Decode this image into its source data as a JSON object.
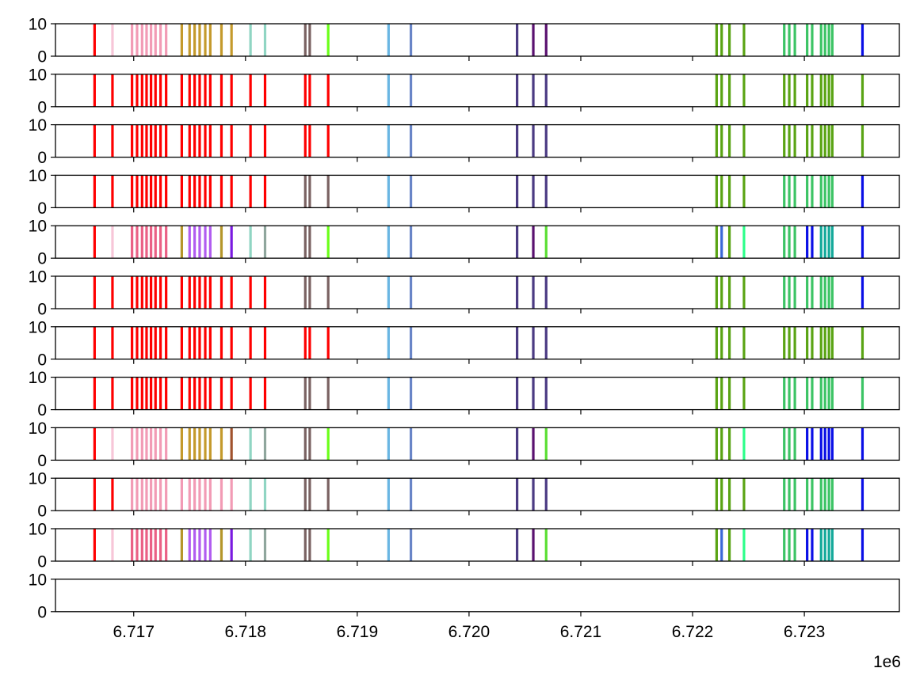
{
  "chart_data": {
    "type": "bar",
    "panel_count": 12,
    "sharex": true,
    "xlim": [
      6716300,
      6723850
    ],
    "ylim": [
      0,
      10
    ],
    "y_ticks": [
      0,
      10
    ],
    "y_tick_labels": [
      "0",
      "10"
    ],
    "x_ticks": [
      6717000,
      6718000,
      6719000,
      6720000,
      6721000,
      6722000,
      6723000
    ],
    "x_tick_labels": [
      "6.717",
      "6.718",
      "6.719",
      "6.720",
      "6.721",
      "6.722",
      "6.723"
    ],
    "x_offset_label": "1e6",
    "bar_height": 10,
    "positions": [
      6716650,
      6716810,
      6716985,
      6717030,
      6717075,
      6717115,
      6717155,
      6717195,
      6717240,
      6717290,
      6717430,
      6717500,
      6717545,
      6717590,
      6717640,
      6717685,
      6717785,
      6717875,
      6718045,
      6718175,
      6718535,
      6718575,
      6718740,
      6719280,
      6719480,
      6720430,
      6720575,
      6720690,
      6722215,
      6722260,
      6722330,
      6722460,
      6722820,
      6722865,
      6722915,
      6723025,
      6723070,
      6723150,
      6723185,
      6723220,
      6723250,
      6723520
    ],
    "palette": {
      "red": "#ff0000",
      "pink_light": "#f7c6d8",
      "pink": "#f29bb5",
      "pink_dark": "#ea6085",
      "gold": "#c49a2c",
      "gold_b": "#b5962b",
      "brown": "#a0522d",
      "teal_light": "#90d5c3",
      "grey_teal": "#8fa69d",
      "taupe": "#7a6262",
      "lime": "#6bff1a",
      "sky": "#69b6e3",
      "steel": "#6985c7",
      "navy_purple": "#4b3b83",
      "deep_purple": "#5a1170",
      "green_b": "#5ade33",
      "olive_green": "#5aa414",
      "royal_blue": "#3b68d8",
      "spring_green": "#2cff8a",
      "green": "#3cc465",
      "blue": "#0a0fe6",
      "cyan_teal": "#14a99a",
      "violet": "#b15cf0",
      "purple": "#7a1ae0"
    },
    "panels": [
      {
        "colors": [
          "red",
          "pink_light",
          "pink",
          "pink",
          "pink",
          "pink",
          "pink",
          "pink",
          "pink",
          "pink",
          "gold",
          "gold",
          "gold",
          "gold",
          "gold",
          "gold",
          "gold",
          "gold",
          "teal_light",
          "teal_light",
          "taupe",
          "taupe",
          "lime",
          "sky",
          "steel",
          "navy_purple",
          "deep_purple",
          "deep_purple",
          "olive_green",
          "olive_green",
          "olive_green",
          "olive_green",
          "green",
          "green",
          "green",
          "green",
          "green",
          "green",
          "green",
          "green",
          "green",
          "blue"
        ]
      },
      {
        "colors": [
          "red",
          "red",
          "red",
          "red",
          "red",
          "red",
          "red",
          "red",
          "red",
          "red",
          "red",
          "red",
          "red",
          "red",
          "red",
          "red",
          "red",
          "red",
          "red",
          "red",
          "red",
          "red",
          "red",
          "sky",
          "steel",
          "navy_purple",
          "navy_purple",
          "navy_purple",
          "olive_green",
          "olive_green",
          "olive_green",
          "olive_green",
          "olive_green",
          "olive_green",
          "olive_green",
          "olive_green",
          "olive_green",
          "olive_green",
          "olive_green",
          "olive_green",
          "olive_green",
          "olive_green"
        ]
      },
      {
        "colors": [
          "red",
          "red",
          "red",
          "red",
          "red",
          "red",
          "red",
          "red",
          "red",
          "red",
          "red",
          "red",
          "red",
          "red",
          "red",
          "red",
          "red",
          "red",
          "red",
          "red",
          "red",
          "red",
          "red",
          "sky",
          "steel",
          "navy_purple",
          "navy_purple",
          "navy_purple",
          "olive_green",
          "olive_green",
          "olive_green",
          "olive_green",
          "olive_green",
          "olive_green",
          "olive_green",
          "olive_green",
          "olive_green",
          "olive_green",
          "olive_green",
          "olive_green",
          "olive_green",
          "olive_green"
        ]
      },
      {
        "colors": [
          "red",
          "red",
          "red",
          "red",
          "red",
          "red",
          "red",
          "red",
          "red",
          "red",
          "red",
          "red",
          "red",
          "red",
          "red",
          "red",
          "red",
          "red",
          "red",
          "red",
          "taupe",
          "taupe",
          "taupe",
          "sky",
          "steel",
          "navy_purple",
          "navy_purple",
          "navy_purple",
          "olive_green",
          "olive_green",
          "olive_green",
          "olive_green",
          "green",
          "green",
          "green",
          "green",
          "green",
          "green",
          "green",
          "green",
          "green",
          "blue"
        ]
      },
      {
        "colors": [
          "red",
          "pink_light",
          "pink_dark",
          "pink_dark",
          "pink_dark",
          "pink_dark",
          "pink_dark",
          "pink_dark",
          "pink_dark",
          "pink_dark",
          "gold_b",
          "violet",
          "violet",
          "violet",
          "violet",
          "violet",
          "gold_b",
          "purple",
          "teal_light",
          "grey_teal",
          "taupe",
          "taupe",
          "lime",
          "sky",
          "steel",
          "navy_purple",
          "deep_purple",
          "green_b",
          "olive_green",
          "royal_blue",
          "olive_green",
          "spring_green",
          "green",
          "green",
          "green",
          "blue",
          "blue",
          "cyan_teal",
          "cyan_teal",
          "cyan_teal",
          "cyan_teal",
          "blue"
        ]
      },
      {
        "colors": [
          "red",
          "red",
          "red",
          "red",
          "red",
          "red",
          "red",
          "red",
          "red",
          "red",
          "red",
          "red",
          "red",
          "red",
          "red",
          "red",
          "red",
          "red",
          "red",
          "red",
          "taupe",
          "taupe",
          "taupe",
          "sky",
          "steel",
          "navy_purple",
          "navy_purple",
          "navy_purple",
          "olive_green",
          "olive_green",
          "olive_green",
          "olive_green",
          "green",
          "green",
          "green",
          "green",
          "green",
          "green",
          "green",
          "green",
          "green",
          "blue"
        ]
      },
      {
        "colors": [
          "red",
          "red",
          "red",
          "red",
          "red",
          "red",
          "red",
          "red",
          "red",
          "red",
          "red",
          "red",
          "red",
          "red",
          "red",
          "red",
          "red",
          "red",
          "red",
          "red",
          "red",
          "red",
          "red",
          "sky",
          "steel",
          "navy_purple",
          "navy_purple",
          "navy_purple",
          "olive_green",
          "olive_green",
          "olive_green",
          "olive_green",
          "olive_green",
          "olive_green",
          "olive_green",
          "olive_green",
          "olive_green",
          "olive_green",
          "olive_green",
          "olive_green",
          "olive_green",
          "olive_green"
        ]
      },
      {
        "colors": [
          "red",
          "red",
          "red",
          "red",
          "red",
          "red",
          "red",
          "red",
          "red",
          "red",
          "red",
          "red",
          "red",
          "red",
          "red",
          "red",
          "red",
          "red",
          "red",
          "red",
          "taupe",
          "taupe",
          "taupe",
          "sky",
          "steel",
          "navy_purple",
          "navy_purple",
          "navy_purple",
          "olive_green",
          "olive_green",
          "olive_green",
          "olive_green",
          "green",
          "green",
          "green",
          "green",
          "green",
          "green",
          "green",
          "green",
          "green",
          "green"
        ]
      },
      {
        "colors": [
          "red",
          "pink_light",
          "pink",
          "pink",
          "pink",
          "pink",
          "pink",
          "pink",
          "pink",
          "pink",
          "gold",
          "gold",
          "gold",
          "gold",
          "gold",
          "gold",
          "gold",
          "brown",
          "teal_light",
          "grey_teal",
          "taupe",
          "taupe",
          "lime",
          "sky",
          "steel",
          "navy_purple",
          "deep_purple",
          "green_b",
          "olive_green",
          "olive_green",
          "olive_green",
          "spring_green",
          "green",
          "green",
          "green",
          "blue",
          "blue",
          "blue",
          "blue",
          "blue",
          "blue",
          "blue"
        ]
      },
      {
        "colors": [
          "red",
          "red",
          "pink",
          "pink",
          "pink",
          "pink",
          "pink",
          "pink",
          "pink",
          "pink",
          "pink",
          "pink",
          "pink",
          "pink",
          "pink",
          "pink",
          "pink",
          "pink",
          "teal_light",
          "teal_light",
          "taupe",
          "taupe",
          "taupe",
          "sky",
          "steel",
          "navy_purple",
          "navy_purple",
          "navy_purple",
          "olive_green",
          "olive_green",
          "olive_green",
          "olive_green",
          "green",
          "green",
          "green",
          "green",
          "green",
          "green",
          "green",
          "green",
          "green",
          "blue"
        ]
      },
      {
        "colors": [
          "red",
          "pink_light",
          "pink_dark",
          "pink_dark",
          "pink_dark",
          "pink_dark",
          "pink_dark",
          "pink_dark",
          "pink_dark",
          "pink_dark",
          "gold_b",
          "violet",
          "violet",
          "violet",
          "violet",
          "violet",
          "gold_b",
          "purple",
          "teal_light",
          "grey_teal",
          "taupe",
          "taupe",
          "lime",
          "sky",
          "steel",
          "navy_purple",
          "deep_purple",
          "green_b",
          "olive_green",
          "royal_blue",
          "olive_green",
          "spring_green",
          "green",
          "green",
          "green",
          "blue",
          "blue",
          "cyan_teal",
          "cyan_teal",
          "cyan_teal",
          "cyan_teal",
          "blue"
        ]
      },
      {
        "colors": []
      }
    ]
  }
}
